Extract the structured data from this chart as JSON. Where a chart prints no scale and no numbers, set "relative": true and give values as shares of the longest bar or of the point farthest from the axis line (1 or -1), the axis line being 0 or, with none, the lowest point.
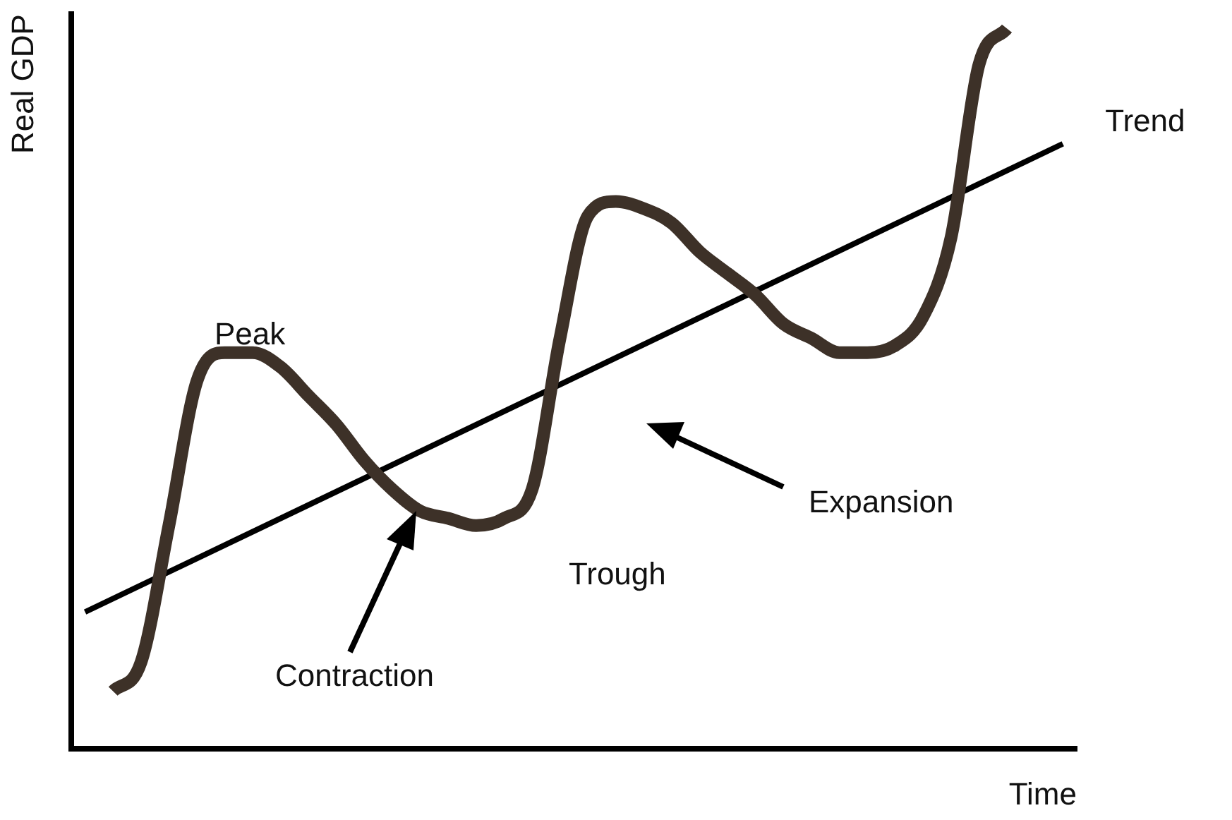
{
  "chart_data": {
    "type": "line",
    "relative": true,
    "xlabel": "Time",
    "ylabel": "Real GDP",
    "categories": [
      null,
      null,
      null,
      null,
      null,
      null,
      null,
      null,
      null,
      null,
      null,
      null,
      null,
      null,
      null,
      null,
      null,
      null,
      null,
      null,
      null,
      null,
      null,
      null,
      null,
      null,
      null,
      null,
      null,
      null,
      null,
      null,
      null,
      null,
      null,
      null
    ],
    "series": [
      {
        "color": "#3d3128",
        "values": [
          null,
          0.08,
          0.12,
          0.31,
          0.51,
          0.55,
          0.55,
          0.53,
          0.49,
          0.45,
          0.4,
          0.36,
          0.33,
          0.32,
          0.31,
          0.32,
          0.36,
          0.57,
          0.74,
          0.76,
          0.75,
          0.73,
          0.69,
          0.66,
          0.63,
          0.59,
          0.57,
          0.55,
          0.55,
          0.56,
          0.6,
          0.71,
          0.95,
          1,
          null,
          null
        ]
      },
      {
        "name": "Trend",
        "color": "#000000",
        "values": [
          0.19,
          null,
          null,
          null,
          null,
          null,
          null,
          null,
          null,
          null,
          null,
          null,
          null,
          null,
          null,
          null,
          null,
          null,
          null,
          null,
          null,
          null,
          null,
          null,
          null,
          null,
          null,
          null,
          null,
          null,
          null,
          null,
          null,
          null,
          null,
          0.84
        ]
      }
    ],
    "annotations": [
      "Peak",
      "Trough",
      "Expansion",
      "Contraction"
    ],
    "legend": false,
    "grid": false,
    "marker": "none",
    "line_style": "solid"
  }
}
